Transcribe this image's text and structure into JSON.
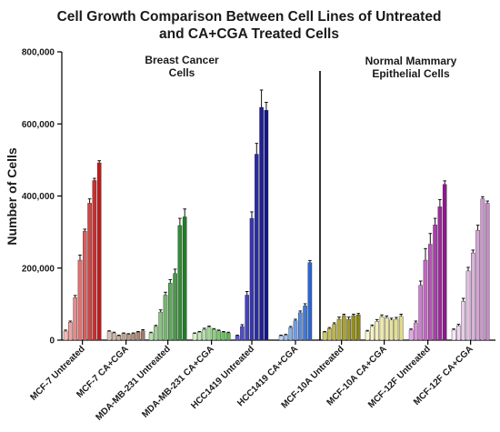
{
  "chart_data": {
    "type": "bar",
    "title_lines": [
      "Cell Growth Comparison Between Cell Lines of Untreated",
      "and CA+CGA Treated Cells"
    ],
    "ylabel": "Number of Cells",
    "xlabel": "",
    "ylim": [
      0,
      800000
    ],
    "yticks": [
      0,
      200000,
      400000,
      600000,
      800000
    ],
    "ytick_labels": [
      "0",
      "200,000",
      "400,000",
      "600,000",
      "800,000"
    ],
    "grid": false,
    "legend": "none",
    "sections": [
      {
        "label_lines": [
          "Breast Cancer",
          "Cells"
        ],
        "groups": [
          0,
          1,
          2,
          3,
          4,
          5
        ]
      },
      {
        "label_lines": [
          "Normal Mammary",
          "Epithelial Cells"
        ],
        "groups": [
          6,
          7,
          8,
          9
        ]
      }
    ],
    "groups": [
      {
        "name": "MCF-7 Untreated",
        "color_light": "#f6b8b8",
        "color_dark": "#c21818",
        "values": [
          25000,
          50000,
          118000,
          222000,
          302000,
          380000,
          443000,
          492000
        ],
        "errors": [
          3000,
          3000,
          6000,
          14000,
          6000,
          12000,
          6000,
          6000
        ]
      },
      {
        "name": "MCF-7 CA+CGA",
        "color_light": "#d8c2b4",
        "color_dark": "#a07a66",
        "values": [
          24000,
          20000,
          12000,
          18000,
          16000,
          18000,
          22000,
          26000
        ],
        "errors": [
          2000,
          2000,
          2000,
          2000,
          2000,
          2000,
          2000,
          3000
        ]
      },
      {
        "name": "MDA-MB-231 Untreated",
        "color_light": "#b3e0a6",
        "color_dark": "#1f7d24",
        "values": [
          20000,
          38000,
          78000,
          125000,
          158000,
          185000,
          318000,
          342000
        ],
        "errors": [
          2000,
          3000,
          6000,
          8000,
          10000,
          12000,
          20000,
          22000
        ]
      },
      {
        "name": "MDA-MB-231 CA+CGA",
        "color_light": "#d6f2c8",
        "color_dark": "#58b74c",
        "values": [
          18000,
          22000,
          30000,
          36000,
          30000,
          26000,
          22000,
          20000
        ],
        "errors": [
          2000,
          2000,
          3000,
          3000,
          2000,
          2000,
          2000,
          2000
        ]
      },
      {
        "name": "HCC1419 Untreated",
        "color_light": "#5a5ad6",
        "color_dark": "#14148a",
        "values": [
          12000,
          38000,
          125000,
          338000,
          516000,
          646000,
          638000
        ],
        "errors": [
          2000,
          5000,
          10000,
          18000,
          30000,
          48000,
          22000
        ]
      },
      {
        "name": "HCC1419 CA+CGA",
        "color_light": "#b6d4f5",
        "color_dark": "#2a66d0",
        "values": [
          12000,
          14000,
          35000,
          54000,
          76000,
          95000,
          215000
        ],
        "errors": [
          2000,
          2000,
          3000,
          4000,
          5000,
          6000,
          6000
        ]
      },
      {
        "name": "MCF-10A Untreated",
        "color_light": "#d0ca64",
        "color_dark": "#8a8412",
        "values": [
          22000,
          32000,
          44000,
          58000,
          68000,
          58000,
          68000,
          70000
        ],
        "errors": [
          2000,
          3000,
          4000,
          6000,
          4000,
          6000,
          4000,
          4000
        ]
      },
      {
        "name": "MCF-10A CA+CGA",
        "color_light": "#fbf7cc",
        "color_dark": "#e0da88",
        "values": [
          24000,
          38000,
          52000,
          65000,
          62000,
          56000,
          58000,
          66000
        ],
        "errors": [
          3000,
          4000,
          5000,
          5000,
          5000,
          5000,
          5000,
          6000
        ]
      },
      {
        "name": "MCF-12F Untreated",
        "color_light": "#e8a6ea",
        "color_dark": "#8e168e",
        "values": [
          28000,
          48000,
          152000,
          222000,
          266000,
          320000,
          370000,
          432000
        ],
        "errors": [
          3000,
          5000,
          12000,
          32000,
          30000,
          18000,
          20000,
          10000
        ]
      },
      {
        "name": "MCF-12F CA+CGA",
        "color_light": "#f7e6f7",
        "color_dark": "#c58ac6",
        "values": [
          28000,
          40000,
          108000,
          192000,
          242000,
          305000,
          392000,
          380000
        ],
        "errors": [
          3000,
          4000,
          8000,
          10000,
          8000,
          14000,
          6000,
          6000
        ]
      }
    ]
  }
}
